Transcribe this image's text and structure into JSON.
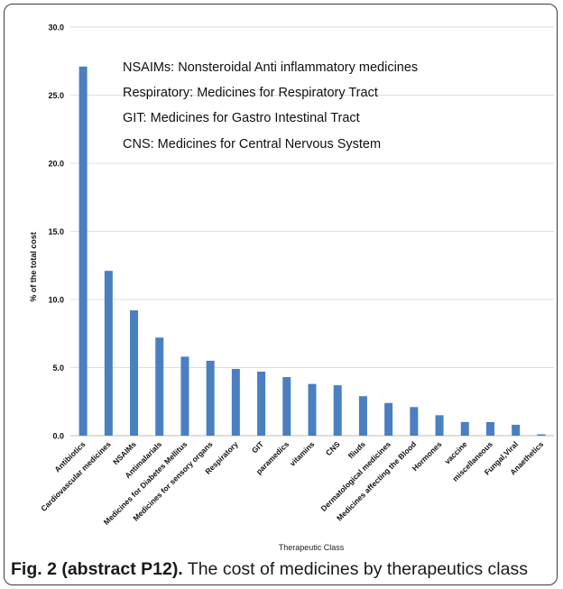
{
  "chart_data": {
    "type": "bar",
    "categories": [
      "Antibiotics",
      "Cardiovascular medicines",
      "NSAIMs",
      "Antimalarials",
      "Medicines for Diabetes Mellitus",
      "Medicines for sensory organs",
      "Respiratory",
      "GIT",
      "paramedics",
      "vitamins",
      "CNS",
      "fliuds",
      "Dermatological medicines",
      "Medicines affecting the Blood",
      "Hormones",
      "vaccine",
      "miscellaneous",
      "Fungal,Viral",
      "Anaethetics"
    ],
    "values": [
      27.1,
      12.1,
      9.2,
      7.2,
      5.8,
      5.5,
      4.9,
      4.7,
      4.3,
      3.8,
      3.7,
      2.9,
      2.4,
      2.1,
      1.5,
      1.0,
      1.0,
      0.8,
      0.1
    ],
    "title": "",
    "xlabel": "Therapeutic Class",
    "ylabel": "% of the total cost",
    "ylim": [
      0,
      30
    ],
    "yticks": [
      "0.0",
      "5.0",
      "10.0",
      "15.0",
      "20.0",
      "25.0",
      "30.0"
    ],
    "grid": true,
    "bar_color": "#4a7fc1",
    "annotations": [
      "NSAIMs: Nonsteroidal Anti inflammatory medicines",
      "Respiratory: Medicines for Respiratory Tract",
      "GIT: Medicines for Gastro Intestinal Tract",
      "CNS: Medicines for Central Nervous System"
    ]
  },
  "caption": {
    "label": "Fig. 2 (abstract P12).",
    "text": " The cost of medicines by therapeutics class"
  }
}
